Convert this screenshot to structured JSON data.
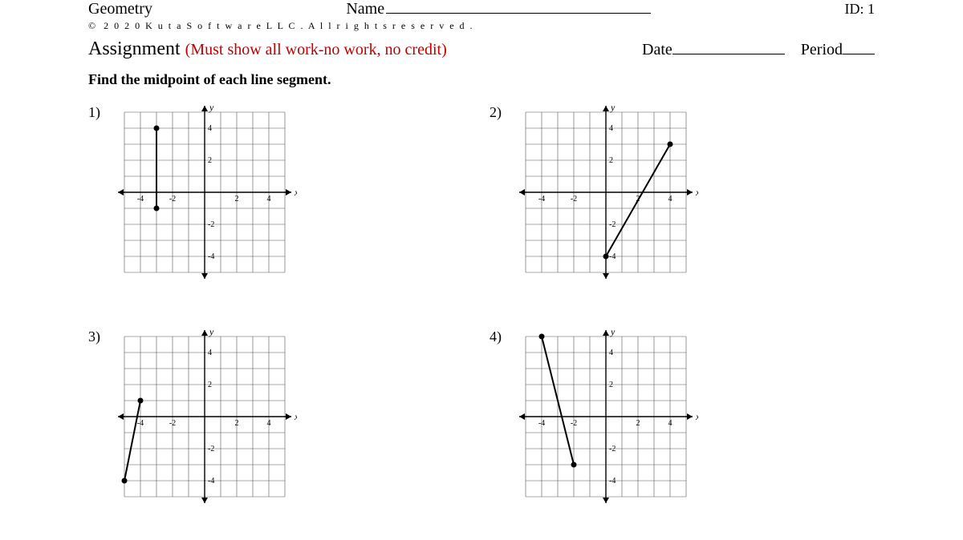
{
  "header": {
    "title": "Geometry",
    "name_label": "Name",
    "id_label": "ID: 1",
    "copyright_symbol": "©",
    "copyright_text": "2 0 2 0   K u t a   S o f t w a r e   L L C .   A l l   r i g h t s   r e s e r v e d ."
  },
  "assignment": {
    "label": "Assignment",
    "note": "(Must show all work-no work, no credit)",
    "date_label": "Date",
    "period_label": "Period"
  },
  "instruction": "Find the midpoint of each line segment.",
  "grid": {
    "size": 200,
    "min": -5,
    "max": 5,
    "ticks": [
      -4,
      -2,
      2,
      4
    ],
    "x_label": "x",
    "y_label": "y",
    "grid_color": "#555555",
    "axis_color": "#000000",
    "point_color": "#000000",
    "line_color": "#000000"
  },
  "problems": [
    {
      "num": "1)",
      "p1": [
        -3,
        -1
      ],
      "p2": [
        -3,
        4
      ]
    },
    {
      "num": "2)",
      "p1": [
        0,
        -4
      ],
      "p2": [
        4,
        3
      ]
    },
    {
      "num": "3)",
      "p1": [
        -5,
        -4
      ],
      "p2": [
        -4,
        1
      ]
    },
    {
      "num": "4)",
      "p1": [
        -4,
        5
      ],
      "p2": [
        -2,
        -3
      ]
    }
  ]
}
